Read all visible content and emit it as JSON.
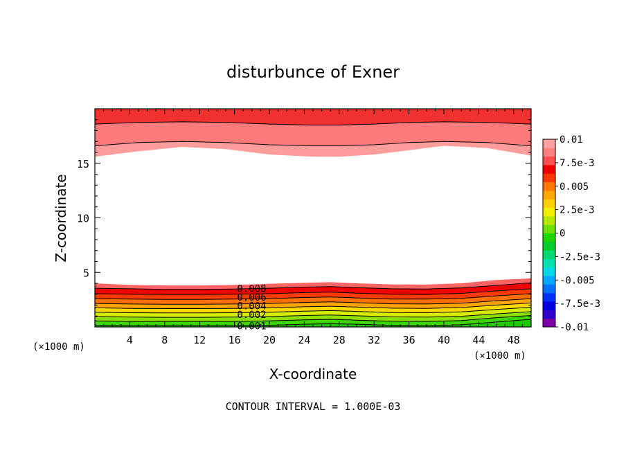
{
  "chart_data": {
    "type": "contour",
    "title": "disturbunce of Exner",
    "xlabel": "X-coordinate",
    "ylabel": "Z-coordinate",
    "x_scale_label_left": "(×1000 m)",
    "x_scale_label_right": "(×1000 m)",
    "xlim": [
      0,
      50
    ],
    "ylim": [
      0,
      20
    ],
    "x_ticks": [
      4,
      8,
      12,
      16,
      20,
      24,
      28,
      32,
      36,
      40,
      44,
      48
    ],
    "y_ticks": [
      5,
      10,
      15
    ],
    "contour_interval_text": "CONTOUR INTERVAL = 1.000E-03",
    "colorbar": {
      "min": -0.01,
      "max": 0.01,
      "tick_labels": [
        "0.01",
        "7.5e-3",
        "0.005",
        "2.5e-3",
        "0",
        "-2.5e-3",
        "-0.005",
        "-7.5e-3",
        "-0.01"
      ],
      "tick_values": [
        0.01,
        0.0075,
        0.005,
        0.0025,
        0,
        -0.0025,
        -0.005,
        -0.0075,
        -0.01
      ],
      "colors_low_to_high": [
        "#7a00a8",
        "#3000c8",
        "#0000e0",
        "#0030ff",
        "#0070ff",
        "#00a8ff",
        "#00d8e8",
        "#00e0b0",
        "#00d870",
        "#00cc30",
        "#20d400",
        "#70e000",
        "#b8e800",
        "#f0f000",
        "#ffd000",
        "#ffa800",
        "#ff7800",
        "#ff3800",
        "#f00000",
        "#ff5050",
        "#ff8080",
        "#ffa0a0"
      ]
    },
    "contour_labels": [
      "0.008",
      "0.006",
      "0.004",
      "0.002",
      "0.001"
    ],
    "bottom_layer_contours": {
      "levels": [
        0.001,
        0.002,
        0.003,
        0.004,
        0.005,
        0.006,
        0.007,
        0.008,
        0.009
      ],
      "x": [
        0,
        4,
        8,
        12,
        16,
        20,
        24,
        27,
        30,
        34,
        38,
        42,
        46,
        50
      ],
      "z": [
        [
          0.15,
          0.12,
          0.12,
          0.12,
          0.12,
          0.15,
          0.25,
          0.3,
          0.25,
          0.15,
          0.12,
          0.2,
          0.45,
          0.7
        ],
        [
          0.55,
          0.5,
          0.5,
          0.5,
          0.5,
          0.55,
          0.65,
          0.7,
          0.62,
          0.52,
          0.5,
          0.58,
          0.85,
          1.05
        ],
        [
          0.95,
          0.9,
          0.88,
          0.88,
          0.9,
          0.95,
          1.05,
          1.1,
          1.02,
          0.92,
          0.9,
          0.98,
          1.2,
          1.4
        ],
        [
          1.35,
          1.3,
          1.28,
          1.28,
          1.3,
          1.35,
          1.45,
          1.5,
          1.42,
          1.32,
          1.3,
          1.38,
          1.6,
          1.8
        ],
        [
          1.75,
          1.7,
          1.68,
          1.68,
          1.7,
          1.75,
          1.85,
          1.9,
          1.82,
          1.72,
          1.7,
          1.78,
          2.0,
          2.2
        ],
        [
          2.15,
          2.1,
          2.08,
          2.08,
          2.1,
          2.15,
          2.25,
          2.3,
          2.22,
          2.12,
          2.1,
          2.18,
          2.4,
          2.6
        ],
        [
          2.6,
          2.55,
          2.52,
          2.52,
          2.55,
          2.6,
          2.7,
          2.75,
          2.66,
          2.56,
          2.55,
          2.62,
          2.85,
          3.05
        ],
        [
          3.05,
          3.0,
          2.98,
          2.98,
          3.0,
          3.05,
          3.15,
          3.2,
          3.1,
          3.0,
          2.98,
          3.08,
          3.3,
          3.5
        ],
        [
          3.55,
          3.5,
          3.45,
          3.45,
          3.48,
          3.55,
          3.65,
          3.7,
          3.6,
          3.5,
          3.48,
          3.58,
          3.8,
          4.05
        ]
      ]
    },
    "top_layer_contours": {
      "levels": [
        0.008,
        0.009
      ],
      "x": [
        0,
        5,
        10,
        15,
        20,
        25,
        28,
        32,
        36,
        40,
        45,
        50
      ],
      "z": [
        [
          16.6,
          16.9,
          17.0,
          16.9,
          16.7,
          16.6,
          16.6,
          16.7,
          16.9,
          17.0,
          16.9,
          16.6
        ],
        [
          18.6,
          18.75,
          18.8,
          18.75,
          18.6,
          18.5,
          18.5,
          18.6,
          18.75,
          18.8,
          18.75,
          18.6
        ]
      ]
    },
    "bottom_layer_fill": {
      "x": [
        0,
        4,
        8,
        12,
        16,
        20,
        24,
        27,
        30,
        34,
        38,
        42,
        46,
        50
      ],
      "z": [
        4.0,
        3.85,
        3.8,
        3.8,
        3.85,
        3.95,
        4.05,
        4.1,
        4.0,
        3.9,
        3.88,
        4.0,
        4.3,
        4.45
      ]
    },
    "top_layer_fill": {
      "x": [
        0,
        5,
        10,
        15,
        20,
        25,
        28,
        32,
        36,
        40,
        45,
        50
      ],
      "z": [
        15.6,
        16.1,
        16.5,
        16.3,
        15.8,
        15.6,
        15.6,
        15.8,
        16.2,
        16.6,
        16.4,
        15.7
      ]
    }
  }
}
